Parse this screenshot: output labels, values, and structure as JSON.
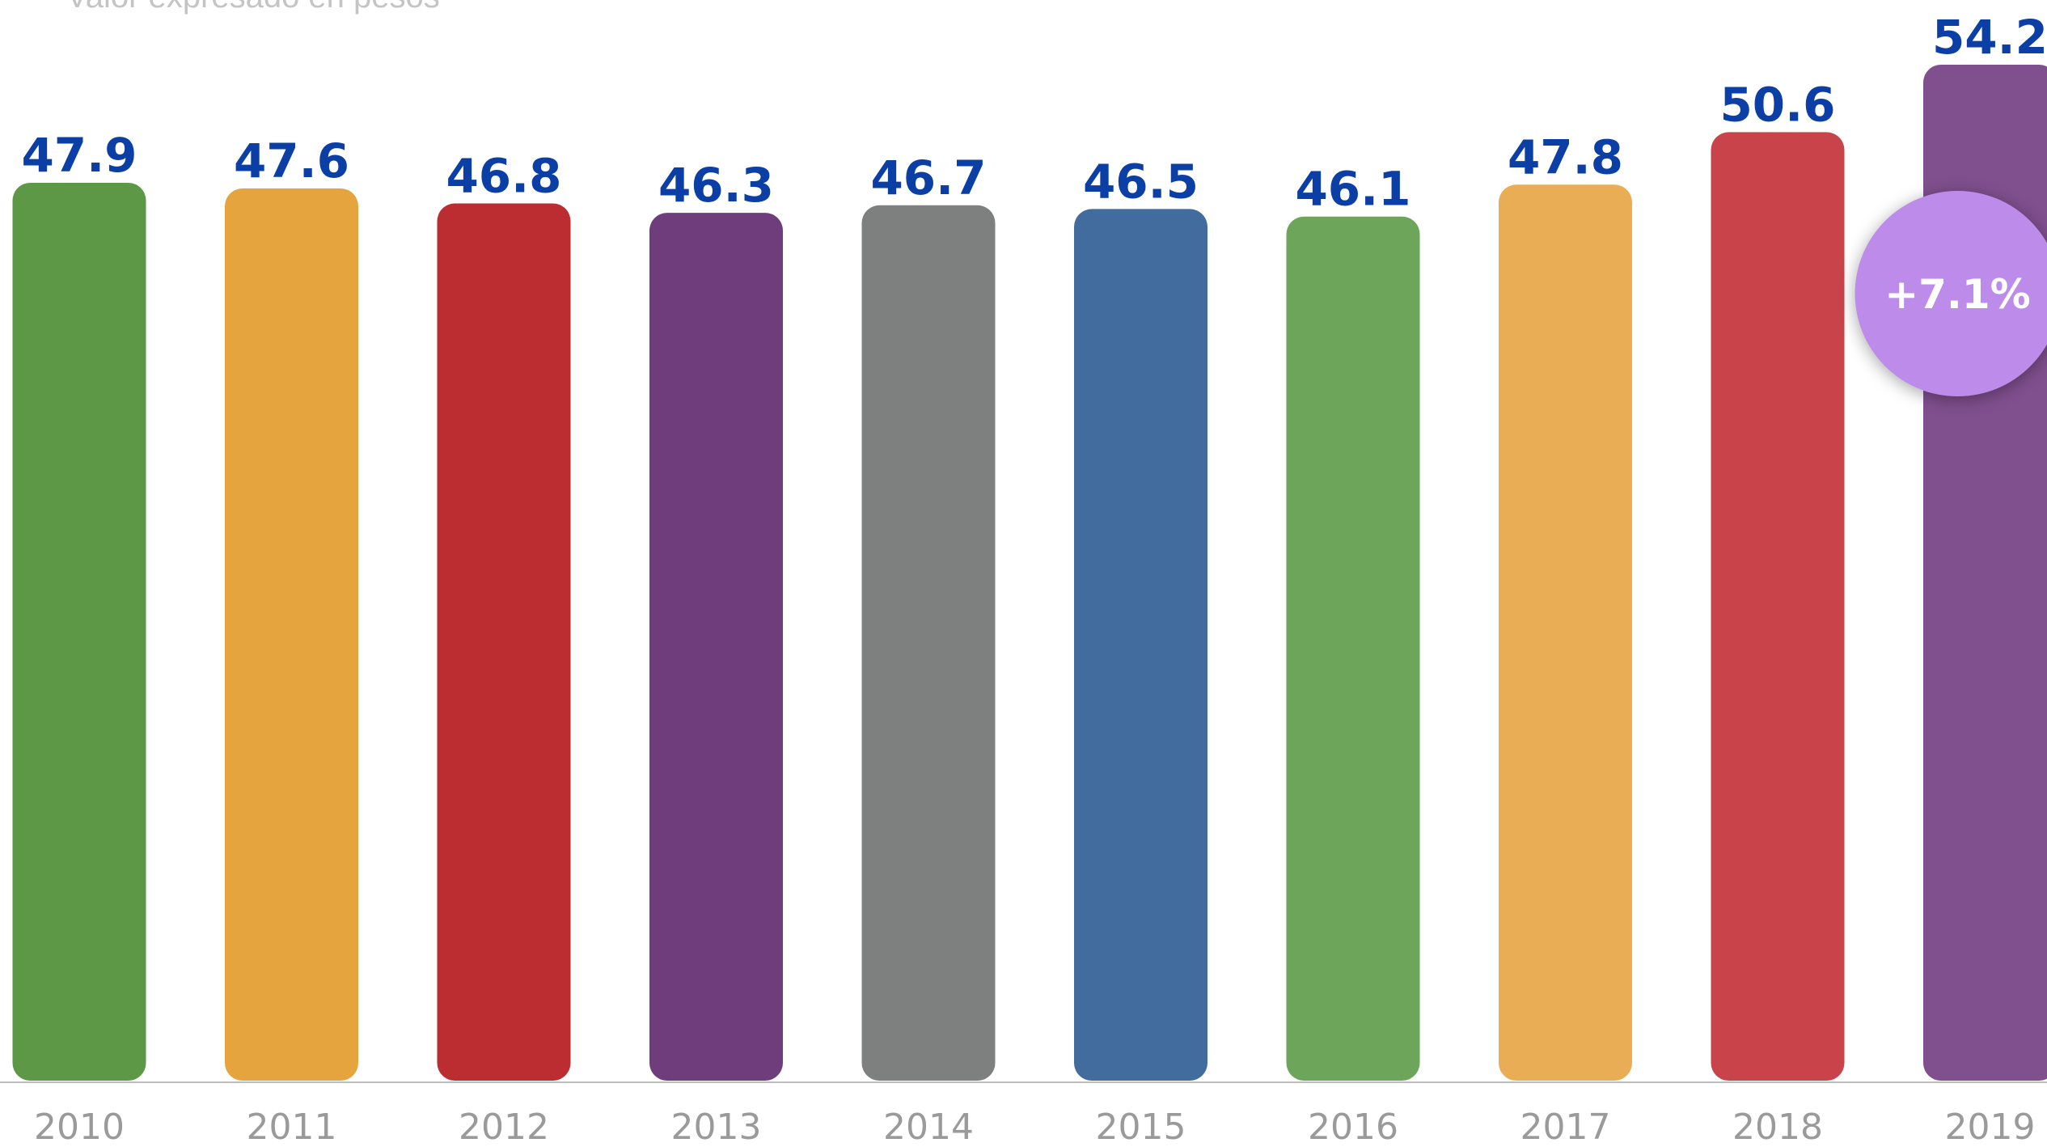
{
  "subtitle": "Valor expresado en pesos",
  "chart_data": {
    "type": "bar",
    "title": "",
    "xlabel": "",
    "ylabel": "",
    "categories": [
      "2010",
      "2011",
      "2012",
      "2013",
      "2014",
      "2015",
      "2016",
      "2017",
      "2018",
      "2019"
    ],
    "values": [
      47.9,
      47.6,
      46.8,
      46.3,
      46.7,
      46.5,
      46.1,
      47.8,
      50.6,
      54.2
    ],
    "value_labels": [
      "47.9",
      "47.6",
      "46.8",
      "46.3",
      "46.7",
      "46.5",
      "46.1",
      "47.8",
      "50.6",
      "54.2"
    ],
    "bar_colors": [
      "#5c9846",
      "#e6a43e",
      "#bb2d31",
      "#6f3d7c",
      "#7e807f",
      "#426b9e",
      "#6da55a",
      "#e9ad56",
      "#c8434a",
      "#804f8e"
    ],
    "value_label_color": "#0b3fa6",
    "tick_label_color": "#9a9a9a",
    "grid": false,
    "legend": "none",
    "annotation": {
      "text": "+7.1%",
      "category": "2019",
      "shape": "circle",
      "fill": "#bd8ceb",
      "text_color": "#ffffff"
    }
  }
}
